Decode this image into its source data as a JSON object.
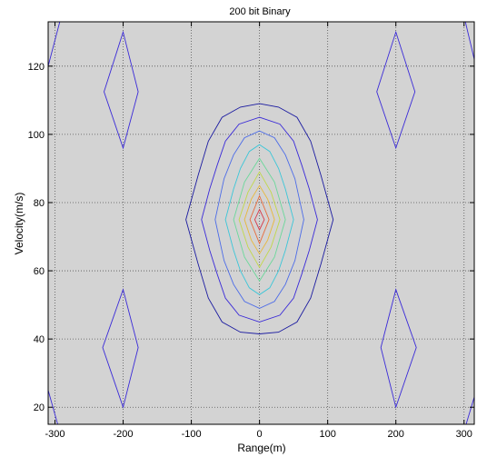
{
  "chart_data": {
    "type": "contour",
    "title": "200 bit Binary",
    "xlabel": "Range(m)",
    "ylabel": "Velocity(m/s)",
    "xlim": [
      -310,
      315
    ],
    "ylim": [
      15,
      133
    ],
    "xticks": [
      -300,
      -200,
      -100,
      0,
      100,
      200,
      300
    ],
    "yticks": [
      20,
      40,
      60,
      80,
      100,
      120
    ],
    "grid": true,
    "background_color": "#d3d3d3",
    "contours": [
      {
        "color": "#1a1aa0",
        "points": [
          [
            0,
            109
          ],
          [
            28,
            108
          ],
          [
            55,
            105
          ],
          [
            75,
            98
          ],
          [
            90,
            88
          ],
          [
            108,
            75
          ],
          [
            90,
            62
          ],
          [
            75,
            52
          ],
          [
            55,
            45
          ],
          [
            28,
            42
          ],
          [
            0,
            41.5
          ],
          [
            -28,
            42
          ],
          [
            -55,
            45
          ],
          [
            -75,
            52
          ],
          [
            -90,
            62
          ],
          [
            -108,
            75
          ],
          [
            -90,
            88
          ],
          [
            -75,
            98
          ],
          [
            -55,
            105
          ],
          [
            -28,
            108
          ]
        ]
      },
      {
        "color": "#3a2ad8",
        "points": [
          [
            0,
            105
          ],
          [
            30,
            103
          ],
          [
            50,
            98
          ],
          [
            62,
            91
          ],
          [
            73,
            84
          ],
          [
            85,
            75
          ],
          [
            73,
            66
          ],
          [
            62,
            59
          ],
          [
            50,
            52
          ],
          [
            30,
            47
          ],
          [
            0,
            45
          ],
          [
            -30,
            47
          ],
          [
            -50,
            52
          ],
          [
            -62,
            59
          ],
          [
            -73,
            66
          ],
          [
            -85,
            75
          ],
          [
            -73,
            84
          ],
          [
            -62,
            91
          ],
          [
            -50,
            98
          ],
          [
            -30,
            103
          ]
        ]
      },
      {
        "color": "#4a6ae8",
        "points": [
          [
            0,
            101
          ],
          [
            22,
            99
          ],
          [
            38,
            94
          ],
          [
            52,
            87
          ],
          [
            65,
            75
          ],
          [
            52,
            63
          ],
          [
            38,
            56
          ],
          [
            22,
            51
          ],
          [
            0,
            49
          ],
          [
            -22,
            51
          ],
          [
            -38,
            56
          ],
          [
            -52,
            63
          ],
          [
            -65,
            75
          ],
          [
            -52,
            87
          ],
          [
            -38,
            94
          ],
          [
            -22,
            99
          ]
        ]
      },
      {
        "color": "#3ac6d8",
        "points": [
          [
            0,
            97
          ],
          [
            15,
            95
          ],
          [
            28,
            90
          ],
          [
            38,
            84
          ],
          [
            50,
            75
          ],
          [
            38,
            66
          ],
          [
            28,
            60
          ],
          [
            15,
            55
          ],
          [
            0,
            53
          ],
          [
            -15,
            55
          ],
          [
            -28,
            60
          ],
          [
            -38,
            66
          ],
          [
            -50,
            75
          ],
          [
            -38,
            84
          ],
          [
            -28,
            90
          ],
          [
            -15,
            95
          ]
        ]
      },
      {
        "color": "#6ad89a",
        "points": [
          [
            0,
            93
          ],
          [
            22,
            86
          ],
          [
            38,
            75
          ],
          [
            22,
            64
          ],
          [
            0,
            57
          ],
          [
            -22,
            64
          ],
          [
            -38,
            75
          ],
          [
            -22,
            86
          ]
        ]
      },
      {
        "color": "#c2d84a",
        "points": [
          [
            0,
            89
          ],
          [
            17,
            83
          ],
          [
            30,
            75
          ],
          [
            17,
            67
          ],
          [
            0,
            61
          ],
          [
            -17,
            67
          ],
          [
            -30,
            75
          ],
          [
            -17,
            83
          ]
        ]
      },
      {
        "color": "#e8b83a",
        "points": [
          [
            0,
            85
          ],
          [
            12,
            81
          ],
          [
            22,
            75
          ],
          [
            12,
            69
          ],
          [
            0,
            65
          ],
          [
            -12,
            69
          ],
          [
            -22,
            75
          ],
          [
            -12,
            81
          ]
        ]
      },
      {
        "color": "#e86a3a",
        "points": [
          [
            0,
            82
          ],
          [
            14,
            75
          ],
          [
            0,
            68
          ],
          [
            -14,
            75
          ]
        ]
      },
      {
        "color": "#d83a4a",
        "points": [
          [
            0,
            78
          ],
          [
            7,
            75
          ],
          [
            0,
            72
          ],
          [
            -7,
            75
          ]
        ]
      },
      {
        "color": "#3a2ad8",
        "points": [
          [
            -200,
            130
          ],
          [
            -178,
            112.5
          ],
          [
            -200,
            96
          ],
          [
            -228,
            112.5
          ]
        ]
      },
      {
        "color": "#3a2ad8",
        "points": [
          [
            200,
            130
          ],
          [
            228,
            112.5
          ],
          [
            200,
            96
          ],
          [
            172,
            112.5
          ]
        ]
      },
      {
        "color": "#3a2ad8",
        "points": [
          [
            -200,
            54.5
          ],
          [
            -178,
            37.5
          ],
          [
            -200,
            20
          ],
          [
            -230,
            37.5
          ]
        ]
      },
      {
        "color": "#3a2ad8",
        "points": [
          [
            200,
            54.5
          ],
          [
            230,
            37.5
          ],
          [
            200,
            20
          ],
          [
            178,
            37.5
          ]
        ]
      }
    ],
    "edge_segments": [
      {
        "color": "#3a2ad8",
        "points": [
          [
            -310,
            120
          ],
          [
            -293,
            133
          ]
        ]
      },
      {
        "color": "#3a2ad8",
        "points": [
          [
            -310,
            25
          ],
          [
            -296,
            15
          ]
        ]
      },
      {
        "color": "#3a2ad8",
        "points": [
          [
            302,
            133
          ],
          [
            315,
            122
          ]
        ]
      },
      {
        "color": "#3a2ad8",
        "points": [
          [
            303,
            15
          ],
          [
            315,
            23
          ]
        ]
      }
    ]
  }
}
